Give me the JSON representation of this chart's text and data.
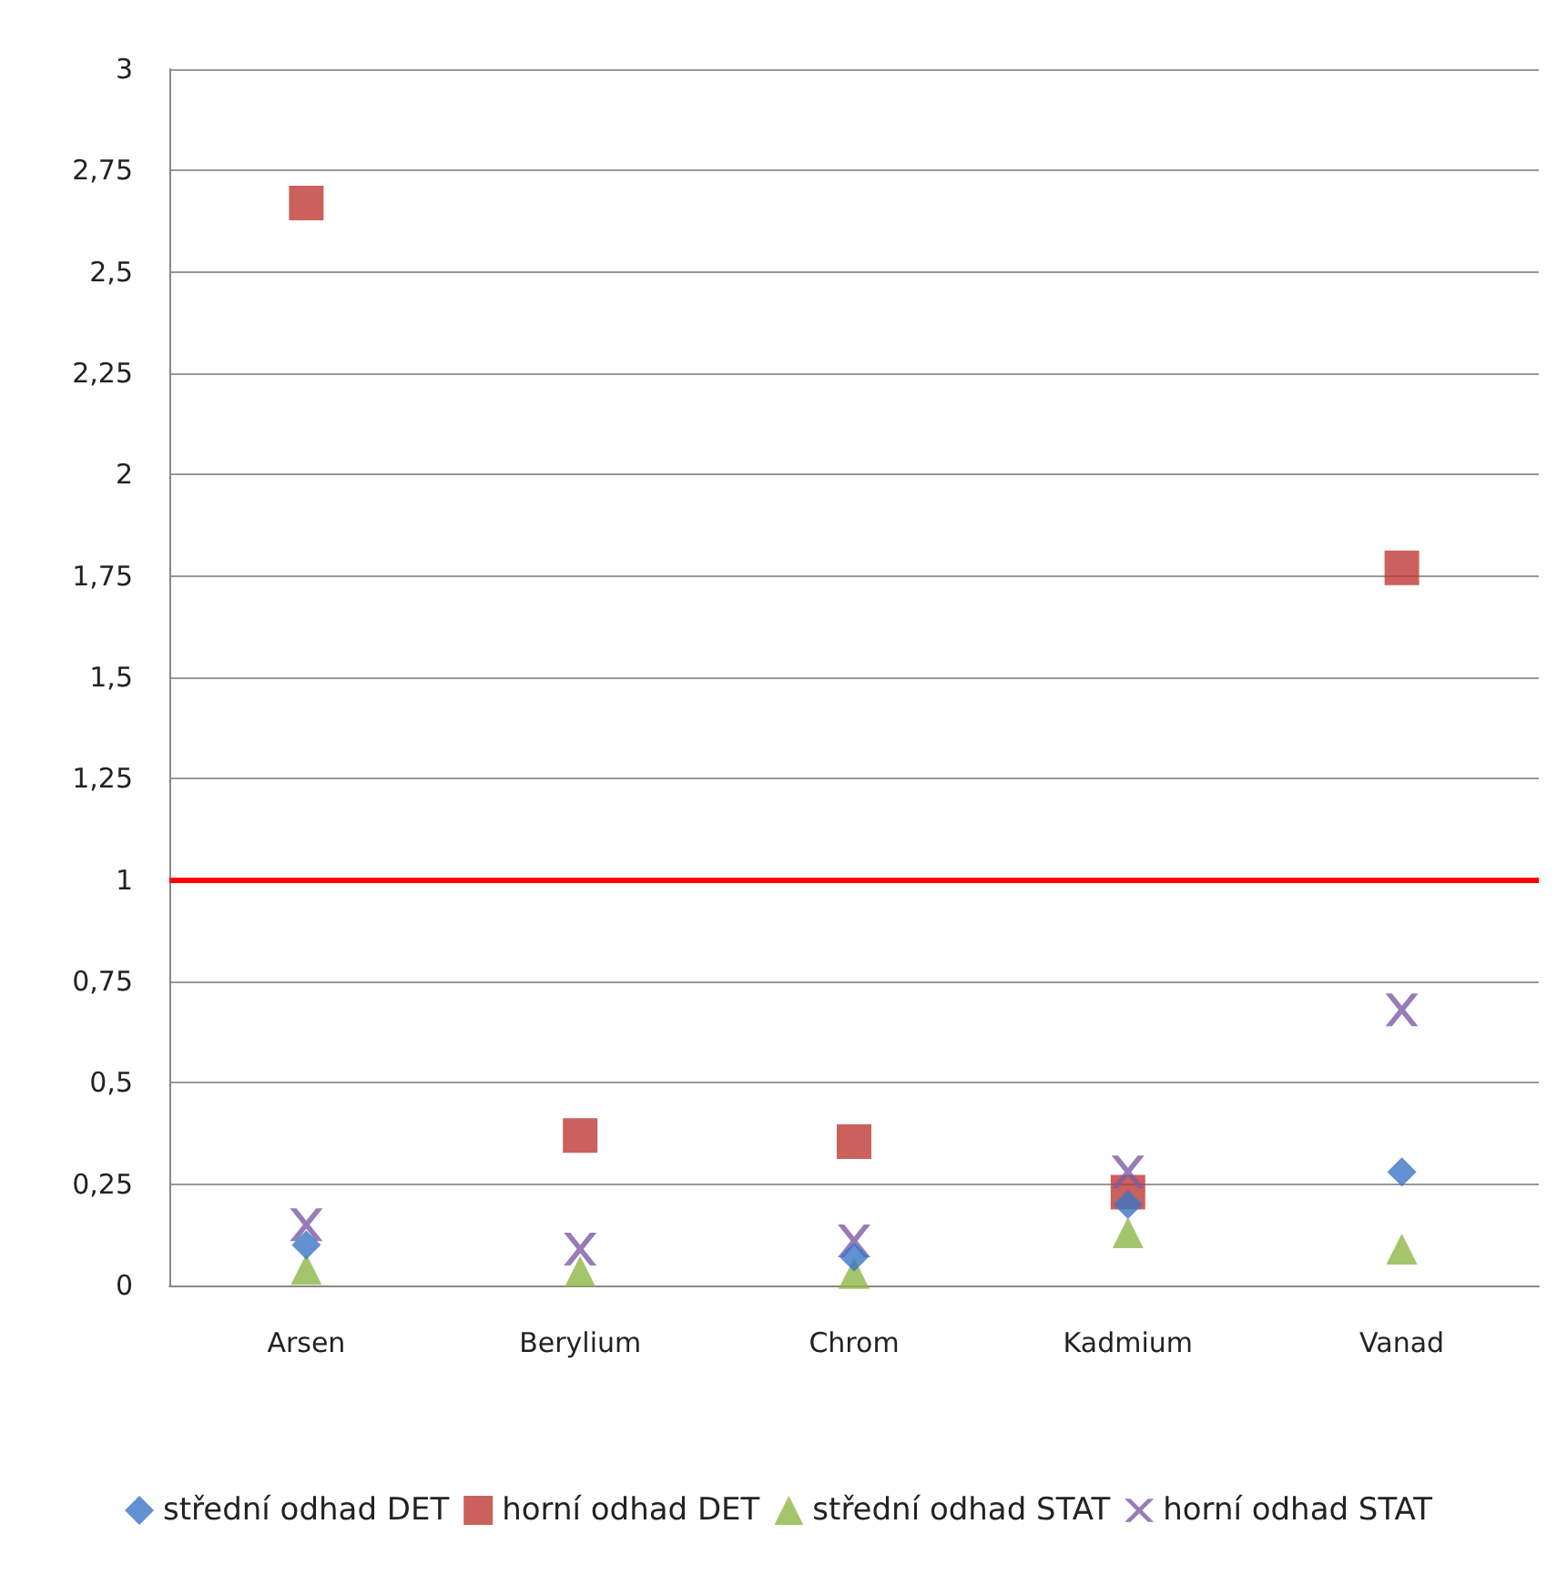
{
  "chart_data": {
    "type": "scatter",
    "categories": [
      "Arsen",
      "Berylium",
      "Chrom",
      "Kadmium",
      "Vanad"
    ],
    "series": [
      {
        "name": "střední odhad DET",
        "color": "#3a75c4",
        "marker": "diamond",
        "values": [
          0.1,
          null,
          0.07,
          0.2,
          0.28
        ]
      },
      {
        "name": "horní odhad DET",
        "color": "#be3a34",
        "marker": "square",
        "values": [
          2.67,
          0.37,
          0.355,
          0.23,
          1.77
        ]
      },
      {
        "name": "střední odhad STAT",
        "color": "#8db646",
        "marker": "triangle",
        "values": [
          0.04,
          0.035,
          0.03,
          0.13,
          0.09
        ]
      },
      {
        "name": "horní odhad STAT",
        "color": "#7d5ba6",
        "marker": "cross",
        "values": [
          0.15,
          0.09,
          0.11,
          0.28,
          0.68
        ]
      }
    ],
    "ylim": [
      0,
      3
    ],
    "yticks": [
      0,
      {
        "value": 0.25,
        "label": "0,25"
      },
      {
        "value": 0.5,
        "label": "0,5"
      },
      {
        "value": 0.75,
        "label": "0,75"
      },
      1,
      {
        "value": 1.25,
        "label": "1,25"
      },
      {
        "value": 1.5,
        "label": "1,5"
      },
      {
        "value": 1.75,
        "label": "1,75"
      },
      2,
      {
        "value": 2.25,
        "label": "2,25"
      },
      {
        "value": 2.5,
        "label": "2,5"
      },
      {
        "value": 2.75,
        "label": "2,75"
      },
      3
    ],
    "ref_lines": [
      {
        "axis": "y",
        "value": 1,
        "color": "#ff0000"
      }
    ],
    "grid": "y",
    "legend": "bottom"
  }
}
